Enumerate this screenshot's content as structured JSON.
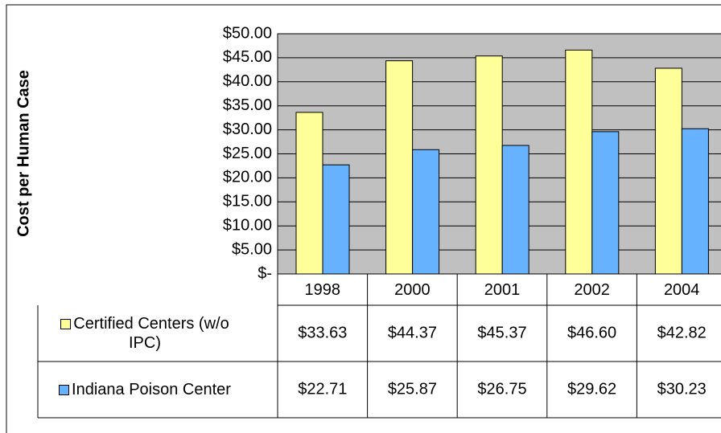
{
  "chart_data": {
    "type": "bar",
    "y_axis_label": "Cost per Human Case",
    "categories": [
      "1998",
      "2000",
      "2001",
      "2002",
      "2004"
    ],
    "series": [
      {
        "name": "Certified Centers (w/o IPC)",
        "color": "#ffff99",
        "values": [
          33.63,
          44.37,
          45.37,
          46.6,
          42.82
        ],
        "value_labels": [
          "$33.63",
          "$44.37",
          "$45.37",
          "$46.60",
          "$42.82"
        ]
      },
      {
        "name": "Indiana Poison Center",
        "color": "#66b2ff",
        "values": [
          22.71,
          25.87,
          26.75,
          29.62,
          30.23
        ],
        "value_labels": [
          "$22.71",
          "$25.87",
          "$26.75",
          "$29.62",
          "$30.23"
        ]
      }
    ],
    "ylim": [
      0,
      50
    ],
    "yticks": [
      {
        "value": 0,
        "label": "$-"
      },
      {
        "value": 5,
        "label": "$5.00"
      },
      {
        "value": 10,
        "label": "$10.00"
      },
      {
        "value": 15,
        "label": "$15.00"
      },
      {
        "value": 20,
        "label": "$20.00"
      },
      {
        "value": 25,
        "label": "$25.00"
      },
      {
        "value": 30,
        "label": "$30.00"
      },
      {
        "value": 35,
        "label": "$35.00"
      },
      {
        "value": 40,
        "label": "$40.00"
      },
      {
        "value": 45,
        "label": "$45.00"
      },
      {
        "value": 50,
        "label": "$50.00"
      }
    ],
    "grid": true,
    "data_table": true
  }
}
